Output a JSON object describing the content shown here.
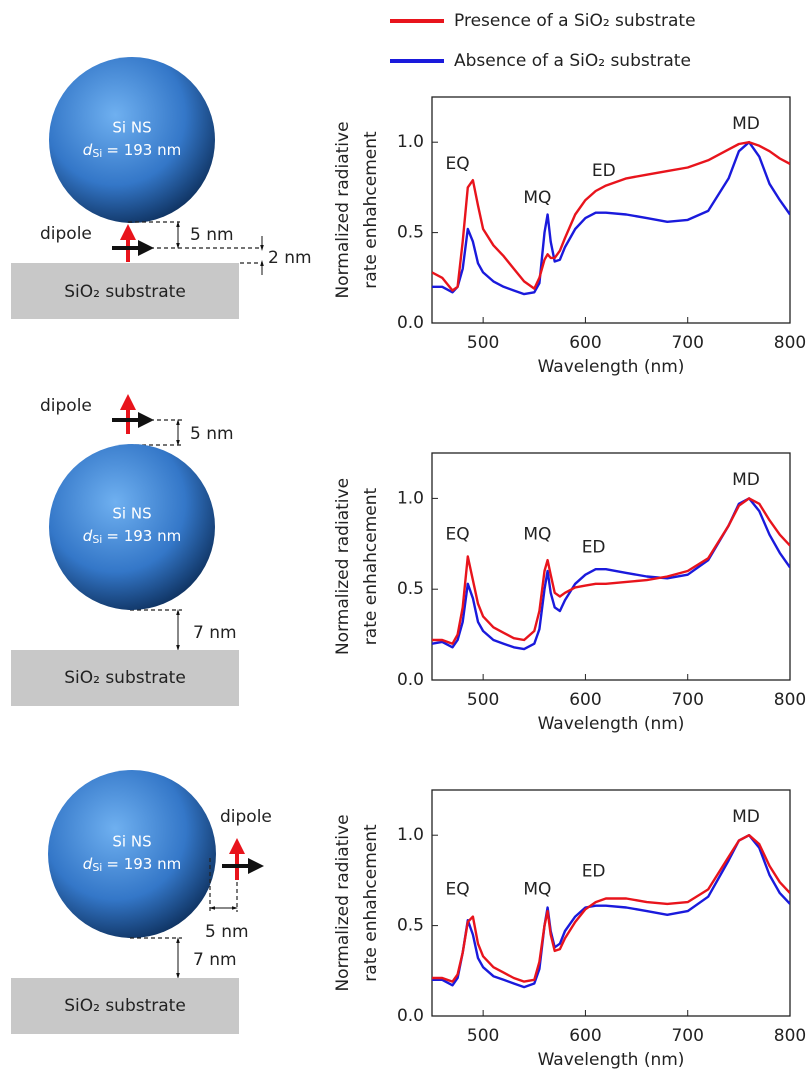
{
  "chart_data": [
    {
      "type": "line",
      "xlabel": "Wavelength (nm)",
      "ylabel": [
        "Normalized radiative",
        "rate enhahcement"
      ],
      "x": [
        450,
        460,
        470,
        475,
        480,
        485,
        490,
        495,
        500,
        510,
        520,
        530,
        540,
        550,
        555,
        560,
        563,
        566,
        570,
        575,
        580,
        590,
        600,
        610,
        620,
        640,
        660,
        680,
        700,
        720,
        740,
        750,
        760,
        770,
        780,
        790,
        800
      ],
      "series": [
        {
          "name": "Presence of a SiO₂ substrate",
          "color": "#e8141c",
          "values": [
            0.28,
            0.25,
            0.18,
            0.2,
            0.45,
            0.75,
            0.79,
            0.65,
            0.52,
            0.43,
            0.37,
            0.3,
            0.23,
            0.19,
            0.25,
            0.35,
            0.38,
            0.36,
            0.36,
            0.4,
            0.47,
            0.6,
            0.68,
            0.73,
            0.76,
            0.8,
            0.82,
            0.84,
            0.86,
            0.9,
            0.96,
            0.99,
            1.0,
            0.98,
            0.95,
            0.91,
            0.88
          ]
        },
        {
          "name": "Absence of a SiO₂ substrate",
          "color": "#1a1adc",
          "values": [
            0.2,
            0.2,
            0.17,
            0.2,
            0.3,
            0.52,
            0.45,
            0.33,
            0.28,
            0.23,
            0.2,
            0.18,
            0.16,
            0.17,
            0.22,
            0.5,
            0.6,
            0.45,
            0.34,
            0.35,
            0.42,
            0.52,
            0.58,
            0.61,
            0.61,
            0.6,
            0.58,
            0.56,
            0.57,
            0.62,
            0.8,
            0.95,
            1.0,
            0.92,
            0.77,
            0.68,
            0.6
          ]
        }
      ],
      "xlim": [
        450,
        800
      ],
      "xticks": [
        500,
        600,
        700,
        800
      ],
      "ylim": [
        0,
        1.25
      ],
      "yticks": [
        {
          "value": 0,
          "label": "0.0"
        },
        {
          "value": 0.5,
          "label": "0.5"
        },
        {
          "value": 1,
          "label": "1.0"
        }
      ],
      "annotations": [
        "EQ",
        "MQ",
        "ED",
        "MD"
      ]
    },
    {
      "type": "line",
      "xlabel": "Wavelength (nm)",
      "ylabel": [
        "Normalized radiative",
        "rate enhahcement"
      ],
      "x": [
        450,
        460,
        470,
        475,
        480,
        485,
        490,
        495,
        500,
        510,
        520,
        530,
        540,
        550,
        555,
        560,
        563,
        566,
        570,
        575,
        580,
        590,
        600,
        610,
        620,
        640,
        660,
        680,
        700,
        720,
        740,
        750,
        760,
        770,
        780,
        790,
        800
      ],
      "series": [
        {
          "color": "#e8141c",
          "values": [
            0.22,
            0.22,
            0.2,
            0.25,
            0.4,
            0.68,
            0.55,
            0.42,
            0.35,
            0.29,
            0.26,
            0.23,
            0.22,
            0.27,
            0.38,
            0.6,
            0.66,
            0.58,
            0.48,
            0.46,
            0.48,
            0.51,
            0.52,
            0.53,
            0.53,
            0.54,
            0.55,
            0.57,
            0.6,
            0.67,
            0.85,
            0.96,
            1.0,
            0.97,
            0.88,
            0.8,
            0.74
          ]
        },
        {
          "color": "#1a1adc",
          "values": [
            0.2,
            0.21,
            0.18,
            0.22,
            0.32,
            0.53,
            0.45,
            0.32,
            0.27,
            0.22,
            0.2,
            0.18,
            0.17,
            0.2,
            0.28,
            0.5,
            0.6,
            0.48,
            0.4,
            0.38,
            0.44,
            0.53,
            0.58,
            0.61,
            0.61,
            0.59,
            0.57,
            0.56,
            0.58,
            0.66,
            0.85,
            0.97,
            1.0,
            0.93,
            0.8,
            0.7,
            0.62
          ]
        }
      ],
      "xlim": [
        450,
        800
      ],
      "xticks": [
        500,
        600,
        700,
        800
      ],
      "ylim": [
        0,
        1.25
      ],
      "yticks": [
        {
          "value": 0,
          "label": "0.0"
        },
        {
          "value": 0.5,
          "label": "0.5"
        },
        {
          "value": 1,
          "label": "1.0"
        }
      ],
      "annotations": [
        "EQ",
        "MQ",
        "ED",
        "MD"
      ]
    },
    {
      "type": "line",
      "xlabel": "Wavelength (nm)",
      "ylabel": [
        "Normalized radiative",
        "rate enhahcement"
      ],
      "x": [
        450,
        460,
        470,
        475,
        480,
        485,
        490,
        495,
        500,
        510,
        520,
        530,
        540,
        550,
        555,
        560,
        563,
        566,
        570,
        575,
        580,
        590,
        600,
        610,
        620,
        640,
        660,
        680,
        700,
        720,
        740,
        750,
        760,
        770,
        780,
        790,
        800
      ],
      "series": [
        {
          "color": "#e8141c",
          "values": [
            0.21,
            0.21,
            0.19,
            0.23,
            0.35,
            0.52,
            0.55,
            0.4,
            0.33,
            0.27,
            0.24,
            0.21,
            0.19,
            0.2,
            0.3,
            0.5,
            0.58,
            0.45,
            0.36,
            0.37,
            0.43,
            0.52,
            0.59,
            0.63,
            0.65,
            0.65,
            0.63,
            0.62,
            0.63,
            0.7,
            0.88,
            0.97,
            1.0,
            0.95,
            0.83,
            0.74,
            0.68
          ]
        },
        {
          "color": "#1a1adc",
          "values": [
            0.2,
            0.2,
            0.17,
            0.21,
            0.35,
            0.53,
            0.45,
            0.32,
            0.27,
            0.22,
            0.2,
            0.18,
            0.16,
            0.18,
            0.26,
            0.5,
            0.6,
            0.47,
            0.38,
            0.4,
            0.47,
            0.55,
            0.6,
            0.61,
            0.61,
            0.6,
            0.58,
            0.56,
            0.58,
            0.66,
            0.86,
            0.97,
            1.0,
            0.93,
            0.78,
            0.68,
            0.62
          ]
        }
      ],
      "xlim": [
        450,
        800
      ],
      "xticks": [
        500,
        600,
        700,
        800
      ],
      "ylim": [
        0,
        1.25
      ],
      "yticks": [
        {
          "value": 0,
          "label": "0.0"
        },
        {
          "value": 0.5,
          "label": "0.5"
        },
        {
          "value": 1,
          "label": "1.0"
        }
      ],
      "annotations": [
        "EQ",
        "MQ",
        "ED",
        "MD"
      ]
    }
  ],
  "diagrams": [
    {
      "sphere": "Si NS",
      "d": "d",
      "d_sub": "Si",
      "d_text": "= 193 nm",
      "dipole": "dipole",
      "gap1": "5 nm",
      "gap2": "2 nm",
      "substrate": "SiO₂ substrate"
    },
    {
      "sphere": "Si NS",
      "d": "d",
      "d_sub": "Si",
      "d_text": "= 193 nm",
      "dipole": "dipole",
      "gap1": "5 nm",
      "gap2": "7 nm",
      "substrate": "SiO₂ substrate"
    },
    {
      "sphere": "Si NS",
      "d": "d",
      "d_sub": "Si",
      "d_text": "= 193 nm",
      "dipole": "dipole",
      "gap1": "5 nm",
      "gap2": "7 nm",
      "substrate": "SiO₂ substrate"
    }
  ]
}
